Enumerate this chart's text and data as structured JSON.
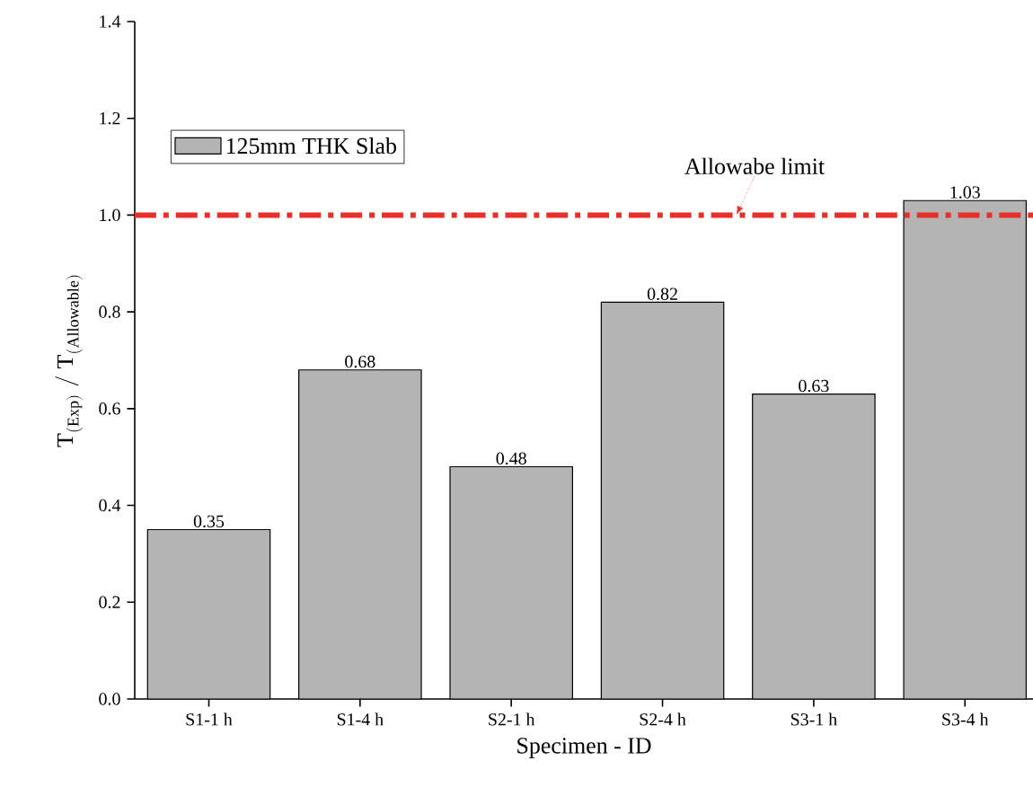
{
  "chart_data": {
    "type": "bar",
    "xlabel": "Specimen - ID",
    "ylabel": "\\mathrm{T}_{(\\mathrm{Exp})}\\;/\\;\\mathrm{T}_{(\\mathrm{Allowable})}",
    "categories": [
      "S1-1 h",
      "S1-4 h",
      "S2-1 h",
      "S2-4 h",
      "S3-1 h",
      "S3-4 h"
    ],
    "series": [
      {
        "name": "125mm THK Slab",
        "color": "#b4b4b4",
        "values": [
          0.35,
          0.68,
          0.48,
          0.82,
          0.63,
          1.03
        ]
      }
    ],
    "data_labels": true,
    "legend": "top left",
    "grid": false,
    "ylim": [
      0,
      1.4
    ],
    "yticks": [
      {
        "value": 0,
        "label": "0.0"
      },
      {
        "value": 0.2,
        "label": "0.2"
      },
      {
        "value": 0.4,
        "label": "0.4"
      },
      {
        "value": 0.6,
        "label": "0.6"
      },
      {
        "value": 0.8,
        "label": "0.8"
      },
      {
        "value": 1,
        "label": "1.0"
      },
      {
        "value": 1.2,
        "label": "1.2"
      },
      {
        "value": 1.4,
        "label": "1.4"
      }
    ],
    "ref_lines": [
      {
        "axis": "y",
        "value": 1.0,
        "label": "Allowabe limit",
        "color": "#e8302a",
        "line_style": "dashdot"
      }
    ]
  }
}
